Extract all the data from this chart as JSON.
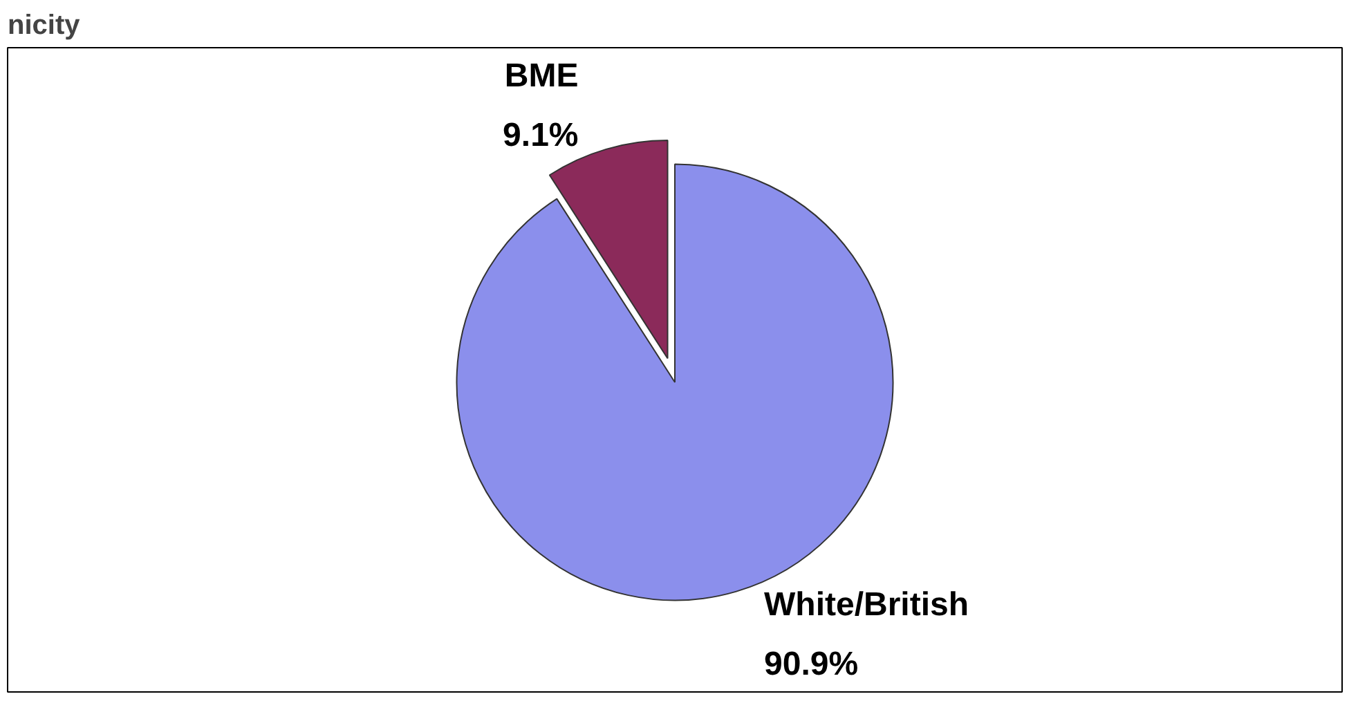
{
  "chart_data": {
    "type": "pie",
    "title": "nicity",
    "categories": [
      "BME",
      "White/British"
    ],
    "values": [
      9.1,
      90.9
    ],
    "value_labels": [
      "9.1%",
      "90.9%"
    ],
    "colors": [
      "#8b2a5a",
      "#8b8fec"
    ]
  }
}
